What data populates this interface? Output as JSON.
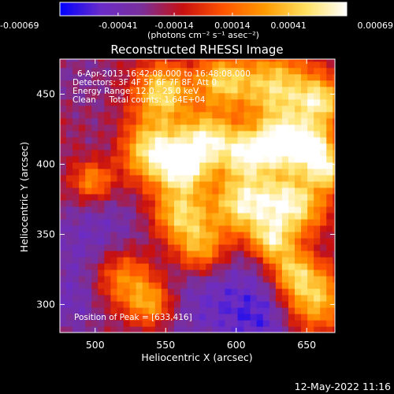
{
  "colorbar": {
    "ticks": [
      "-0.00069",
      "-0.00041",
      "-0.00014",
      "0.00014",
      "0.00041",
      "0.00069"
    ],
    "unit_label": "(photons cm⁻² s⁻¹ asec⁻²)"
  },
  "chart_data": {
    "type": "heatmap",
    "title": "Reconstructed RHESSI Image",
    "xlabel": "Heliocentric X (arcsec)",
    "ylabel": "Heliocentric Y (arcsec)",
    "xlim": [
      475,
      670
    ],
    "ylim": [
      280,
      475
    ],
    "x_ticks": [
      500,
      550,
      600,
      650
    ],
    "y_ticks": [
      300,
      350,
      400,
      450
    ],
    "color_scale": {
      "min": -0.00069,
      "max": 0.00069,
      "colors": [
        "#0000ff",
        "#6a2cc8",
        "#7a2f9a",
        "#c81010",
        "#ff5500",
        "#ff9a00",
        "#ffe060",
        "#ffffff"
      ]
    },
    "annotations": [
      "6-Apr-2013 16:42:08.000 to 16:48:08.000",
      "Detectors: 3F 4F 5F 6F 7F 8F, Att 0",
      "Energy Range: 12.0 - 25.0 keV",
      "Clean     Total counts: 1.64E+04"
    ],
    "peak_label": "Position of Peak = [633,416]",
    "peak": [
      633,
      416
    ],
    "hot_regions": [
      {
        "x": 540,
        "y": 410,
        "r": 16,
        "v": 0.0006
      },
      {
        "x": 563,
        "y": 398,
        "r": 12,
        "v": 0.00052
      },
      {
        "x": 548,
        "y": 452,
        "r": 14,
        "v": 0.0005
      },
      {
        "x": 580,
        "y": 418,
        "r": 14,
        "v": 0.00055
      },
      {
        "x": 608,
        "y": 408,
        "r": 12,
        "v": 0.0005
      },
      {
        "x": 633,
        "y": 416,
        "r": 13,
        "v": 0.00069
      },
      {
        "x": 655,
        "y": 412,
        "r": 11,
        "v": 0.0006
      },
      {
        "x": 628,
        "y": 455,
        "r": 18,
        "v": 0.0005
      },
      {
        "x": 660,
        "y": 445,
        "r": 12,
        "v": 0.00048
      },
      {
        "x": 590,
        "y": 460,
        "r": 13,
        "v": 0.00042
      },
      {
        "x": 605,
        "y": 372,
        "r": 16,
        "v": 0.00058
      },
      {
        "x": 640,
        "y": 372,
        "r": 16,
        "v": 0.0006
      },
      {
        "x": 625,
        "y": 345,
        "r": 10,
        "v": 0.00042
      },
      {
        "x": 560,
        "y": 365,
        "r": 14,
        "v": 0.00048
      },
      {
        "x": 575,
        "y": 340,
        "r": 13,
        "v": 0.0004
      },
      {
        "x": 520,
        "y": 320,
        "r": 16,
        "v": 0.00042
      },
      {
        "x": 540,
        "y": 300,
        "r": 12,
        "v": 0.00038
      },
      {
        "x": 498,
        "y": 388,
        "r": 10,
        "v": 0.0003
      },
      {
        "x": 655,
        "y": 305,
        "r": 16,
        "v": 0.00046
      },
      {
        "x": 640,
        "y": 325,
        "r": 11,
        "v": 0.00034
      },
      {
        "x": 665,
        "y": 395,
        "r": 9,
        "v": 0.0004
      }
    ],
    "cold_regions": [
      {
        "x": 505,
        "y": 340,
        "r": 28,
        "v": -0.0006
      },
      {
        "x": 515,
        "y": 415,
        "r": 14,
        "v": -0.00034
      },
      {
        "x": 590,
        "y": 305,
        "r": 30,
        "v": -0.00058
      },
      {
        "x": 620,
        "y": 290,
        "r": 16,
        "v": -0.0005
      },
      {
        "x": 545,
        "y": 290,
        "r": 18,
        "v": -0.0003
      },
      {
        "x": 485,
        "y": 300,
        "r": 16,
        "v": -0.00042
      },
      {
        "x": 490,
        "y": 460,
        "r": 18,
        "v": -0.00034
      },
      {
        "x": 660,
        "y": 340,
        "r": 10,
        "v": -0.00025
      }
    ]
  },
  "footer": {
    "timestamp": "12-May-2022 11:16"
  }
}
